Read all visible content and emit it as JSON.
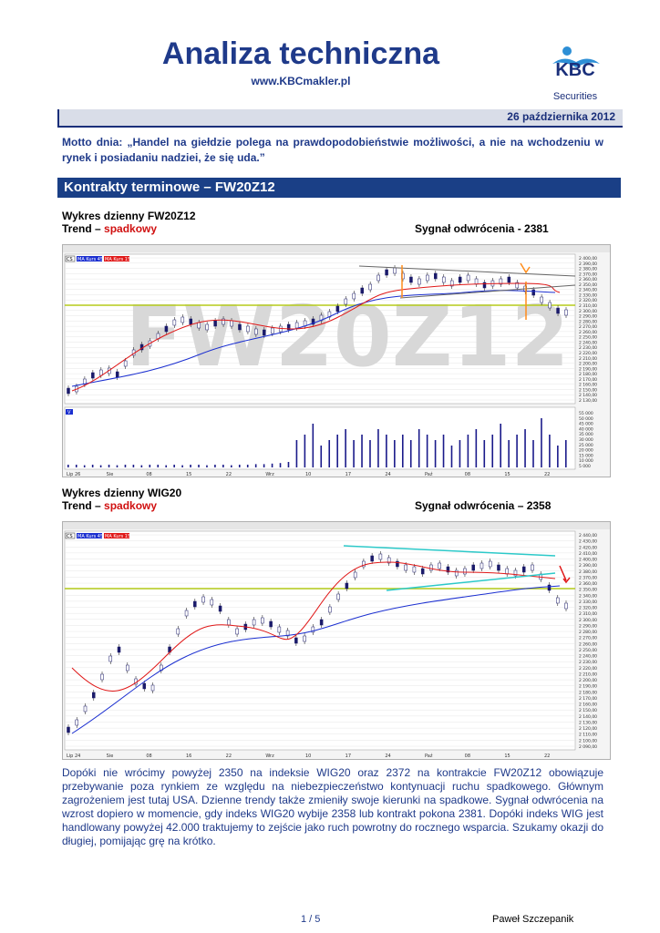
{
  "header": {
    "title": "Analiza techniczna",
    "url": "www.KBCmakler.pl",
    "logo_text": "KBC",
    "logo_sub": "Securities",
    "date": "26 października 2012"
  },
  "motto": "Motto dnia: „Handel na giełdzie polega na prawdopodobieństwie możliwości, a nie na wchodzeniu w rynek i posiadaniu nadziei, że się uda.”",
  "section_title": "Kontrakty terminowe – FW20Z12",
  "chart1": {
    "heading": "Wykres dzienny FW20Z12",
    "trend_label": "Trend –",
    "trend_value": "spadkowy",
    "signal": "Sygnał odwrócenia - 2381",
    "watermark": "FW20Z12",
    "legend": [
      "CS",
      "MA Kurs 45",
      "MA Kurs 15"
    ],
    "volume_label": "V",
    "x_labels": [
      "Lip 26",
      "Sie",
      "08",
      "15",
      "22",
      "Wrz",
      "10",
      "17",
      "24",
      "Paź",
      "08",
      "15",
      "22"
    ],
    "y_labels": [
      "2 400,00",
      "2 390,00",
      "2 380,00",
      "2 370,00",
      "2 360,00",
      "2 350,00",
      "2 340,00",
      "2 330,00",
      "2 320,00",
      "2 310,00",
      "2 300,00",
      "2 290,00",
      "2 280,00",
      "2 270,00",
      "2 260,00",
      "2 250,00",
      "2 240,00",
      "2 230,00",
      "2 220,00",
      "2 210,00",
      "2 200,00",
      "2 190,00",
      "2 180,00",
      "2 170,00",
      "2 160,00",
      "2 150,00",
      "2 140,00",
      "2 130,00"
    ],
    "vol_labels": [
      "55 000",
      "50 000",
      "45 000",
      "40 000",
      "35 000",
      "30 000",
      "25 000",
      "20 000",
      "15 000",
      "10 000",
      "5 000"
    ]
  },
  "chart2": {
    "heading": "Wykres dzienny WIG20",
    "trend_label": "Trend –",
    "trend_value": "spadkowy",
    "signal": "Sygnał odwrócenia – 2358",
    "legend": [
      "CS",
      "MA Kurs 45",
      "MA Kurs 15"
    ],
    "x_labels": [
      "Lip 24",
      "Sie",
      "08",
      "16",
      "22",
      "Wrz",
      "10",
      "17",
      "24",
      "Paź",
      "08",
      "15",
      "22"
    ],
    "y_labels": [
      "2 440,00",
      "2 430,00",
      "2 420,00",
      "2 410,00",
      "2 400,00",
      "2 390,00",
      "2 380,00",
      "2 370,00",
      "2 360,00",
      "2 350,00",
      "2 340,00",
      "2 330,00",
      "2 320,00",
      "2 310,00",
      "2 300,00",
      "2 290,00",
      "2 280,00",
      "2 270,00",
      "2 260,00",
      "2 250,00",
      "2 240,00",
      "2 230,00",
      "2 220,00",
      "2 210,00",
      "2 200,00",
      "2 190,00",
      "2 180,00",
      "2 170,00",
      "2 160,00",
      "2 150,00",
      "2 140,00",
      "2 130,00",
      "2 120,00",
      "2 110,00",
      "2 100,00",
      "2 090,00"
    ]
  },
  "body_text": "Dopóki nie wrócimy powyżej 2350 na indeksie WIG20 oraz 2372 na kontrakcie FW20Z12 obowiązuje przebywanie poza rynkiem ze względu na niebezpieczeństwo kontynuacji ruchu spadkowego. Głównym zagrożeniem jest tutaj USA. Dzienne trendy także zmieniły swoje kierunki na spadkowe. Sygnał odwrócenia na wzrost dopiero w momencie, gdy indeks WIG20 wybije 2358 lub kontrakt pokona 2381. Dopóki indeks WIG jest handlowany powyżej 42.000 traktujemy to zejście jako ruch powrotny do rocznego wsparcia. Szukamy okazji do długiej, pomijając grę na krótko.",
  "footer": {
    "page": "1 / 5",
    "author": "Paweł Szczepanik"
  },
  "colors": {
    "brand_blue": "#1f3a8a",
    "trend_red": "#d01010",
    "section_bg": "#1a3f86",
    "ma45": "#1b2fd0",
    "ma15": "#e01818",
    "support_line": "#b5cc1a"
  }
}
